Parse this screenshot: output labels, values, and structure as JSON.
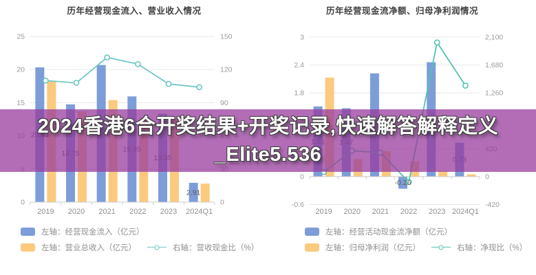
{
  "banner": {
    "line1": "2024香港6合开奖结果+开奖记录,快速解答解释定义",
    "line2": "_Elite5.536",
    "bg_color": "#983c9e",
    "text_color": "#ffffff"
  },
  "chart_data": [
    {
      "type": "bar+line",
      "title": "历年经营现金流入、营业收入情况",
      "categories": [
        "2019",
        "2020",
        "2021",
        "2022",
        "2023",
        "2024Q1"
      ],
      "left_axis": {
        "min": 0,
        "max": 25,
        "ticks": [
          "25",
          "20",
          "15",
          "10",
          "5",
          "0"
        ]
      },
      "right_axis": {
        "min": 0,
        "max": 150,
        "ticks": [
          "150",
          "120",
          "90",
          "60",
          "30",
          "0"
        ]
      },
      "grid": true,
      "legend_position": "bottom",
      "series": [
        {
          "name": "左轴：经营现金流入（亿元）",
          "type": "bar",
          "axis": "left",
          "color": "#7d9dd8",
          "values": [
            20.33,
            14.75,
            20.69,
            15.95,
            13.35,
            2.91
          ],
          "labels": [
            "20.33",
            "14.75",
            "20.69",
            "15.95",
            "13.35",
            "2.91"
          ]
        },
        {
          "name": "左轴：营业总收入（亿元）",
          "type": "bar",
          "axis": "left",
          "color": "#fbca7f",
          "values": [
            18.2,
            13.7,
            15.4,
            12.75,
            12.5,
            2.8
          ]
        },
        {
          "name": "右轴：营收现金比（%）",
          "type": "line",
          "axis": "right",
          "color": "#6fc7c5",
          "values": [
            110,
            108,
            131,
            125,
            107,
            104
          ]
        }
      ],
      "legend": [
        "左轴：经营现金流入（亿元）",
        "左轴：营业总收入（亿元）",
        "右轴：营收现金比（%）"
      ]
    },
    {
      "type": "bar+line",
      "title": "历年经营现金流净额、归母净利润情况",
      "categories": [
        "2019",
        "2020",
        "2021",
        "2022",
        "2023",
        "2024Q1"
      ],
      "left_axis": {
        "min": -0.6,
        "max": 3,
        "ticks": [
          "3",
          "2.4",
          "1.8",
          "1.2",
          "0.6",
          "0",
          "-0.6"
        ]
      },
      "right_axis": {
        "min": -420,
        "max": 2100,
        "ticks": [
          "2,100",
          "1,680",
          "1,260",
          "840",
          "420",
          "0",
          "-420"
        ]
      },
      "grid": true,
      "legend_position": "bottom",
      "series": [
        {
          "name": "左轴：经营活动现金流净额（亿元）",
          "type": "bar",
          "axis": "left",
          "color": "#7d9dd8",
          "values": [
            1.51,
            1.47,
            2.22,
            -0.26,
            2.46,
            0.73
          ],
          "labels": [
            "1.51",
            "1.47",
            "",
            "-0.26",
            "",
            "0.73"
          ]
        },
        {
          "name": "左轴：归母净利润（亿元）",
          "type": "bar",
          "axis": "left",
          "color": "#fbca7f",
          "values": [
            2.13,
            0.38,
            0.55,
            0.33,
            0.12,
            0.05
          ]
        },
        {
          "name": "右轴：净现比（%）",
          "type": "line",
          "axis": "right",
          "color": "#53c3b1",
          "values": [
            70,
            390,
            360,
            -80,
            2020,
            1370
          ]
        }
      ],
      "legend": [
        "左轴：经营活动现金流净额（亿元）",
        "左轴：归母净利润（亿元）",
        "右轴：净现比（%）"
      ]
    }
  ]
}
